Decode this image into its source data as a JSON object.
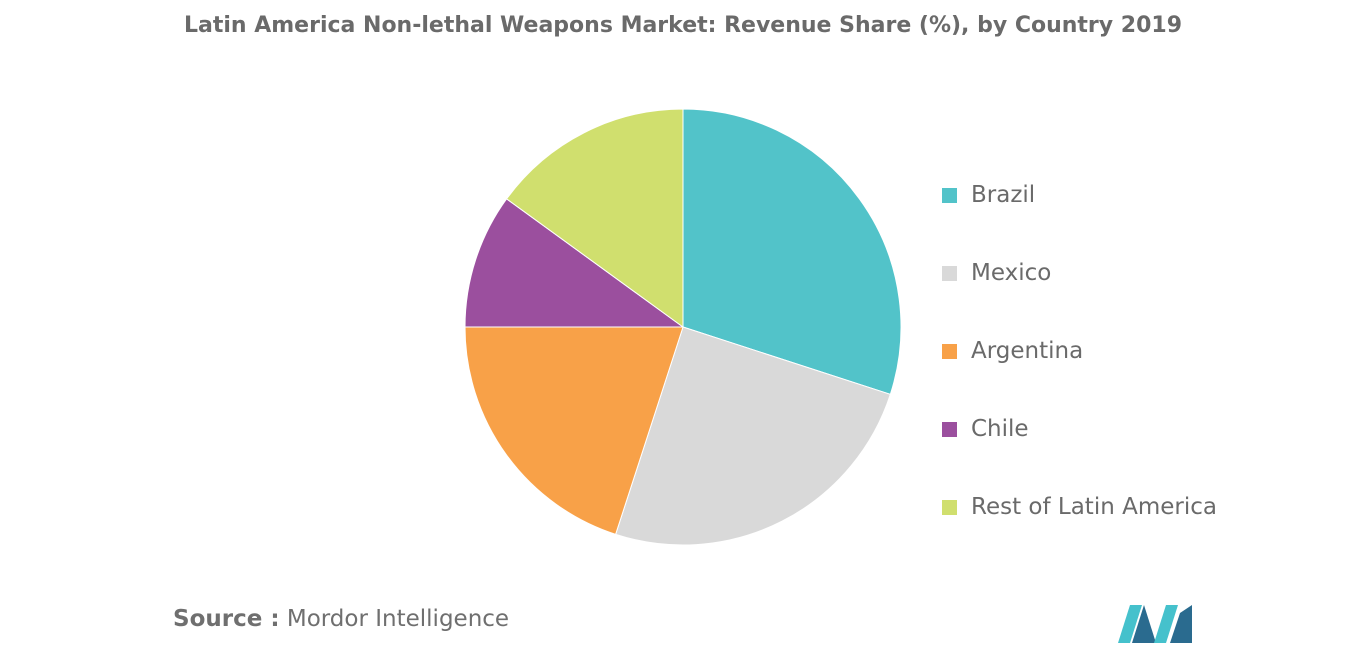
{
  "title": "Latin America Non-lethal Weapons Market: Revenue Share (%), by Country 2019",
  "source": {
    "prefix": "Source :",
    "text": "Mordor Intelligence"
  },
  "logo": {
    "icon": "mordor-intelligence-logo-icon",
    "colors": [
      "#2a6b8f",
      "#45c1cc"
    ]
  },
  "chart_data": {
    "type": "pie",
    "title": "Latin America Non-lethal Weapons Market: Revenue Share (%), by Country 2019",
    "start": "12 o'clock",
    "direction": "clockwise",
    "legend_position": "right",
    "slices": [
      {
        "label": "Brazil",
        "value": 30,
        "color": "#52c3c9"
      },
      {
        "label": "Mexico",
        "value": 25,
        "color": "#d9d9d9"
      },
      {
        "label": "Argentina",
        "value": 20,
        "color": "#f8a148"
      },
      {
        "label": "Chile",
        "value": 10,
        "color": "#9b4f9e"
      },
      {
        "label": "Rest of Latin America",
        "value": 15,
        "color": "#d0df6e"
      }
    ]
  }
}
